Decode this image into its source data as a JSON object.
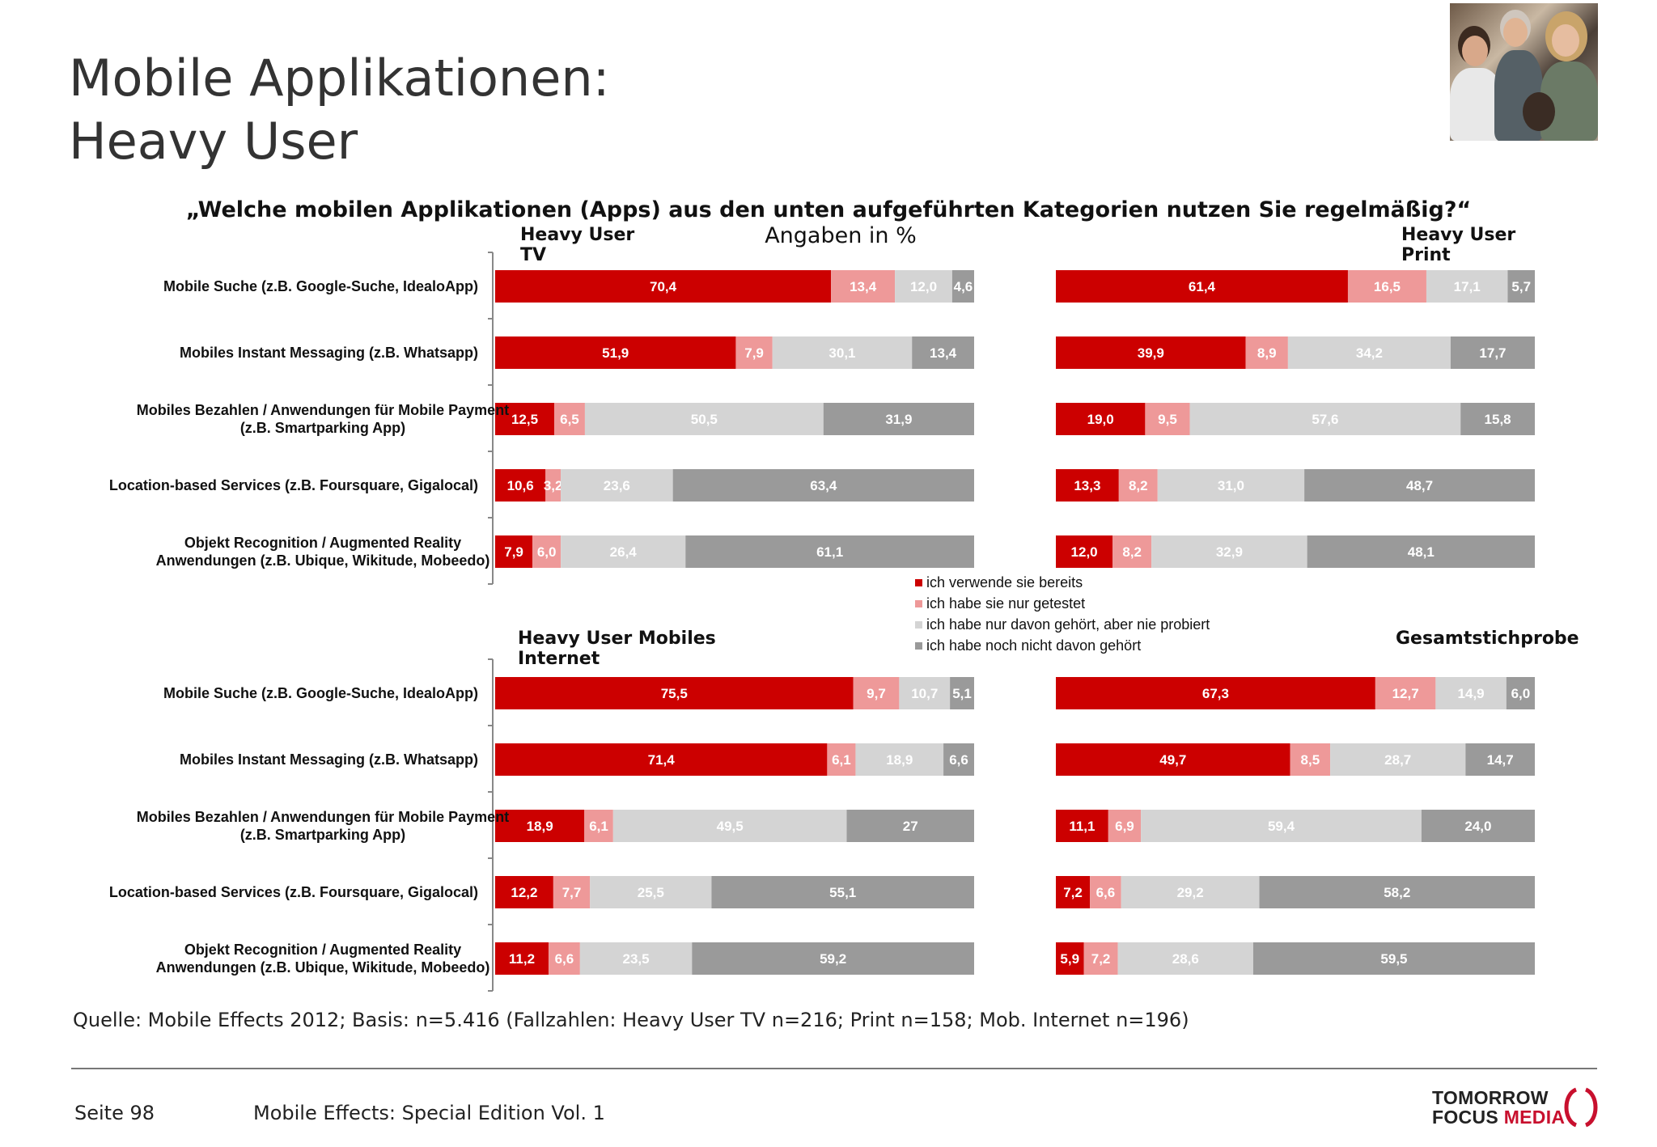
{
  "title": {
    "line1": "Mobile Applikationen:",
    "line2": "Heavy User"
  },
  "question": "„Welche mobilen Applikationen (Apps) aus den unten aufgeführten Kategorien nutzen Sie regelmäßig?“",
  "unit_label": "Angaben in %",
  "colors": {
    "verwende": "#cc0000",
    "getestet": "#ee9999",
    "gehoert": "#d4d4d4",
    "nicht": "#9a9a9a"
  },
  "legend": [
    {
      "label": "ich verwende sie bereits",
      "color": "#cc0000"
    },
    {
      "label": "ich habe sie nur getestet",
      "color": "#ee9999"
    },
    {
      "label": "ich habe nur davon gehört, aber nie probiert",
      "color": "#d4d4d4"
    },
    {
      "label": "ich habe noch nicht davon gehört",
      "color": "#9a9a9a"
    }
  ],
  "chart_data": [
    {
      "type": "bar",
      "stacked": true,
      "orientation": "horizontal",
      "title": "Heavy User TV",
      "categories": [
        "Mobile Suche (z.B. Google-Suche, IdealoApp)",
        "Mobiles Instant Messaging (z.B. Whatsapp)",
        "Mobiles Bezahlen / Anwendungen für Mobile Payment (z.B. Smartparking App)",
        "Location-based Services (z.B. Foursquare, Gigalocal)",
        "Objekt Recognition / Augmented Reality Anwendungen (z.B. Ubique, Wikitude, Mobeedo)"
      ],
      "category_lines": [
        [
          "Mobile Suche (z.B. Google-Suche, IdealoApp)"
        ],
        [
          "Mobiles Instant Messaging (z.B. Whatsapp)"
        ],
        [
          "Mobiles Bezahlen / Anwendungen für Mobile Payment",
          "(z.B. Smartparking App)"
        ],
        [
          "Location-based Services (z.B. Foursquare, Gigalocal)"
        ],
        [
          "Objekt Recognition / Augmented Reality",
          "Anwendungen (z.B. Ubique, Wikitude, Mobeedo)"
        ]
      ],
      "series": [
        {
          "name": "ich verwende sie bereits",
          "values": [
            70.4,
            51.9,
            12.5,
            10.6,
            7.9
          ],
          "labels": [
            "70,4",
            "51,9",
            "12,5",
            "10,6",
            "7,9"
          ]
        },
        {
          "name": "ich habe sie nur getestet",
          "values": [
            13.4,
            7.9,
            6.5,
            3.2,
            6.0
          ],
          "labels": [
            "13,4",
            "7,9",
            "6,5",
            "3,2",
            "6,0"
          ]
        },
        {
          "name": "ich habe nur davon gehört, aber nie probiert",
          "values": [
            12.0,
            30.1,
            50.5,
            23.6,
            26.4
          ],
          "labels": [
            "12,0",
            "30,1",
            "50,5",
            "23,6",
            "26,4"
          ]
        },
        {
          "name": "ich habe noch nicht davon gehört",
          "values": [
            4.6,
            13.4,
            31.9,
            63.4,
            61.1
          ],
          "labels": [
            "4,6",
            "13,4",
            "31,9",
            "63,4",
            "61,1"
          ]
        }
      ]
    },
    {
      "type": "bar",
      "stacked": true,
      "orientation": "horizontal",
      "title": "Heavy User Print",
      "categories": [
        "Mobile Suche (z.B. Google-Suche, IdealoApp)",
        "Mobiles Instant Messaging (z.B. Whatsapp)",
        "Mobiles Bezahlen / Anwendungen für Mobile Payment (z.B. Smartparking App)",
        "Location-based Services (z.B. Foursquare, Gigalocal)",
        "Objekt Recognition / Augmented Reality Anwendungen (z.B. Ubique, Wikitude, Mobeedo)"
      ],
      "series": [
        {
          "name": "ich verwende sie bereits",
          "values": [
            61.4,
            39.9,
            19.0,
            13.3,
            12.0
          ],
          "labels": [
            "61,4",
            "39,9",
            "19,0",
            "13,3",
            "12,0"
          ]
        },
        {
          "name": "ich habe sie nur getestet",
          "values": [
            16.5,
            8.9,
            9.5,
            8.2,
            8.2
          ],
          "labels": [
            "16,5",
            "8,9",
            "9,5",
            "8,2",
            "8,2"
          ]
        },
        {
          "name": "ich habe nur davon gehört, aber nie probiert",
          "values": [
            17.1,
            34.2,
            57.6,
            31.0,
            32.9
          ],
          "labels": [
            "17,1",
            "34,2",
            "57,6",
            "31,0",
            "32,9"
          ]
        },
        {
          "name": "ich habe noch nicht davon gehört",
          "values": [
            5.7,
            17.7,
            15.8,
            48.7,
            48.1
          ],
          "labels": [
            "5,7",
            "17,7",
            "15,8",
            "48,7",
            "48,1"
          ]
        }
      ]
    },
    {
      "type": "bar",
      "stacked": true,
      "orientation": "horizontal",
      "title": "Heavy User Mobiles Internet",
      "categories": [
        "Mobile Suche (z.B. Google-Suche, IdealoApp)",
        "Mobiles Instant Messaging (z.B. Whatsapp)",
        "Mobiles Bezahlen / Anwendungen für Mobile Payment (z.B. Smartparking App)",
        "Location-based Services (z.B. Foursquare, Gigalocal)",
        "Objekt Recognition / Augmented Reality Anwendungen (z.B. Ubique, Wikitude, Mobeedo)"
      ],
      "category_lines": [
        [
          "Mobile Suche (z.B. Google-Suche, IdealoApp)"
        ],
        [
          "Mobiles Instant Messaging (z.B. Whatsapp)"
        ],
        [
          "Mobiles Bezahlen / Anwendungen für Mobile Payment",
          "(z.B. Smartparking App)"
        ],
        [
          "Location-based Services (z.B. Foursquare, Gigalocal)"
        ],
        [
          "Objekt Recognition / Augmented Reality",
          "Anwendungen (z.B. Ubique, Wikitude, Mobeedo)"
        ]
      ],
      "series": [
        {
          "name": "ich verwende sie bereits",
          "values": [
            75.5,
            71.4,
            18.9,
            12.2,
            11.2
          ],
          "labels": [
            "75,5",
            "71,4",
            "18,9",
            "12,2",
            "11,2"
          ]
        },
        {
          "name": "ich habe sie nur getestet",
          "values": [
            9.7,
            6.1,
            6.1,
            7.7,
            6.6
          ],
          "labels": [
            "9,7",
            "6,1",
            "6,1",
            "7,7",
            "6,6"
          ]
        },
        {
          "name": "ich habe nur davon gehört, aber nie probiert",
          "values": [
            10.7,
            18.9,
            49.5,
            25.5,
            23.5
          ],
          "labels": [
            "10,7",
            "18,9",
            "49,5",
            "25,5",
            "23,5"
          ]
        },
        {
          "name": "ich habe noch nicht davon gehört",
          "values": [
            5.1,
            6.6,
            27,
            55.1,
            59.2
          ],
          "labels": [
            "5,1",
            "6,6",
            "27",
            "55,1",
            "59,2"
          ]
        }
      ]
    },
    {
      "type": "bar",
      "stacked": true,
      "orientation": "horizontal",
      "title": "Gesamtstichprobe",
      "categories": [
        "Mobile Suche (z.B. Google-Suche, IdealoApp)",
        "Mobiles Instant Messaging (z.B. Whatsapp)",
        "Mobiles Bezahlen / Anwendungen für Mobile Payment (z.B. Smartparking App)",
        "Location-based Services (z.B. Foursquare, Gigalocal)",
        "Objekt Recognition / Augmented Reality Anwendungen (z.B. Ubique, Wikitude, Mobeedo)"
      ],
      "series": [
        {
          "name": "ich verwende sie bereits",
          "values": [
            67.3,
            49.7,
            11.1,
            7.2,
            5.9
          ],
          "labels": [
            "67,3",
            "49,7",
            "11,1",
            "7,2",
            "5,9"
          ]
        },
        {
          "name": "ich habe sie nur getestet",
          "values": [
            12.7,
            8.5,
            6.9,
            6.6,
            7.2
          ],
          "labels": [
            "12,7",
            "8,5",
            "6,9",
            "6,6",
            "7,2"
          ]
        },
        {
          "name": "ich habe nur davon gehört, aber nie probiert",
          "values": [
            14.9,
            28.7,
            59.4,
            29.2,
            28.6
          ],
          "labels": [
            "14,9",
            "28,7",
            "59,4",
            "29,2",
            "28,6"
          ]
        },
        {
          "name": "ich habe noch nicht davon gehört",
          "values": [
            6.0,
            14.7,
            24.0,
            58.2,
            59.5
          ],
          "labels": [
            "6,0",
            "14,7",
            "24,0",
            "58,2",
            "59,5"
          ]
        }
      ]
    }
  ],
  "panel_titles": {
    "tv": "Heavy User\nTV",
    "print": "Heavy User\nPrint",
    "mobile": "Heavy User Mobiles\nInternet",
    "gesamt": "Gesamtstichprobe"
  },
  "source": "Quelle: Mobile Effects 2012; Basis: n=5.416 (Fallzahlen: Heavy User TV n=216; Print n=158; Mob. Internet n=196)",
  "footer": {
    "page": "Seite 98",
    "publication": "Mobile Effects: Special Edition Vol. 1"
  },
  "logo": {
    "line1": "TOMORROW",
    "line2a": "FOCUS ",
    "line2b": "MEDIA"
  }
}
